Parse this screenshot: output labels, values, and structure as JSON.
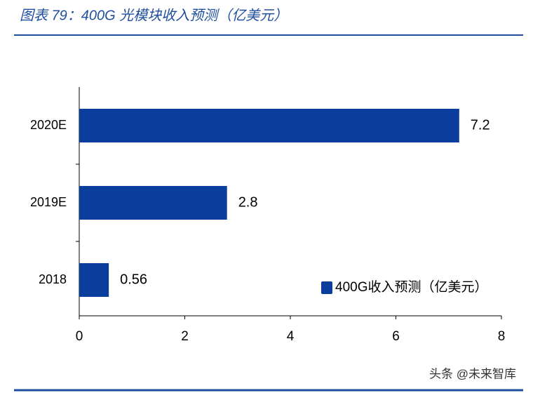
{
  "chart_data": {
    "type": "bar",
    "orientation": "horizontal",
    "title": "图表 79：400G 光模块收入预测（亿美元）",
    "categories": [
      "2020E",
      "2019E",
      "2018"
    ],
    "series": [
      {
        "name": "400G收入预测（亿美元）",
        "color": "#0a3d9c",
        "values": [
          7.2,
          2.8,
          0.56
        ]
      }
    ],
    "xlim": [
      0,
      8
    ],
    "xticks": [
      0,
      2,
      4,
      6,
      8
    ],
    "legend": "lower-right"
  },
  "watermark": "头条 @未来智库"
}
